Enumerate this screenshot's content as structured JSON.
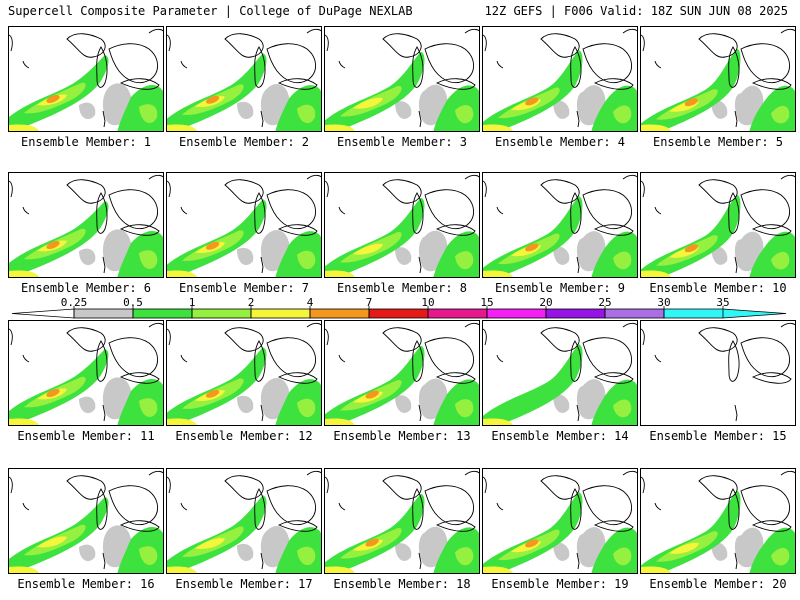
{
  "header": {
    "left_title": "Supercell Composite Parameter | College of DuPage NEXLAB",
    "right_title": "12Z GEFS | F006 Valid: 18Z SUN JUN 08 2025"
  },
  "legend": {
    "ticks": [
      "0.25",
      "0.5",
      "1",
      "2",
      "4",
      "7",
      "10",
      "15",
      "20",
      "25",
      "30",
      "35"
    ],
    "colors": [
      "#c8c8c8",
      "#3ee23e",
      "#96f040",
      "#f5f53c",
      "#f5961e",
      "#e61919",
      "#e6198c",
      "#f51ef5",
      "#9614e6",
      "#aa6ee6",
      "#32f5f5"
    ]
  },
  "members": [
    {
      "label": "Ensemble Member: 1",
      "intensity": "orange"
    },
    {
      "label": "Ensemble Member: 2",
      "intensity": "orange"
    },
    {
      "label": "Ensemble Member: 3",
      "intensity": "yellow"
    },
    {
      "label": "Ensemble Member: 4",
      "intensity": "orange"
    },
    {
      "label": "Ensemble Member: 5",
      "intensity": "orange"
    },
    {
      "label": "Ensemble Member: 6",
      "intensity": "orange"
    },
    {
      "label": "Ensemble Member: 7",
      "intensity": "orange"
    },
    {
      "label": "Ensemble Member: 8",
      "intensity": "yellow"
    },
    {
      "label": "Ensemble Member: 9",
      "intensity": "orange"
    },
    {
      "label": "Ensemble Member: 10",
      "intensity": "orange"
    },
    {
      "label": "Ensemble Member: 11",
      "intensity": "orange"
    },
    {
      "label": "Ensemble Member: 12",
      "intensity": "orange"
    },
    {
      "label": "Ensemble Member: 13",
      "intensity": "orange"
    },
    {
      "label": "Ensemble Member: 14",
      "intensity": "green"
    },
    {
      "label": "Ensemble Member: 15",
      "intensity": "none"
    },
    {
      "label": "Ensemble Member: 16",
      "intensity": "yellow"
    },
    {
      "label": "Ensemble Member: 17",
      "intensity": "yellow"
    },
    {
      "label": "Ensemble Member: 18",
      "intensity": "orange"
    },
    {
      "label": "Ensemble Member: 19",
      "intensity": "orange"
    },
    {
      "label": "Ensemble Member: 20",
      "intensity": "yellow"
    }
  ]
}
